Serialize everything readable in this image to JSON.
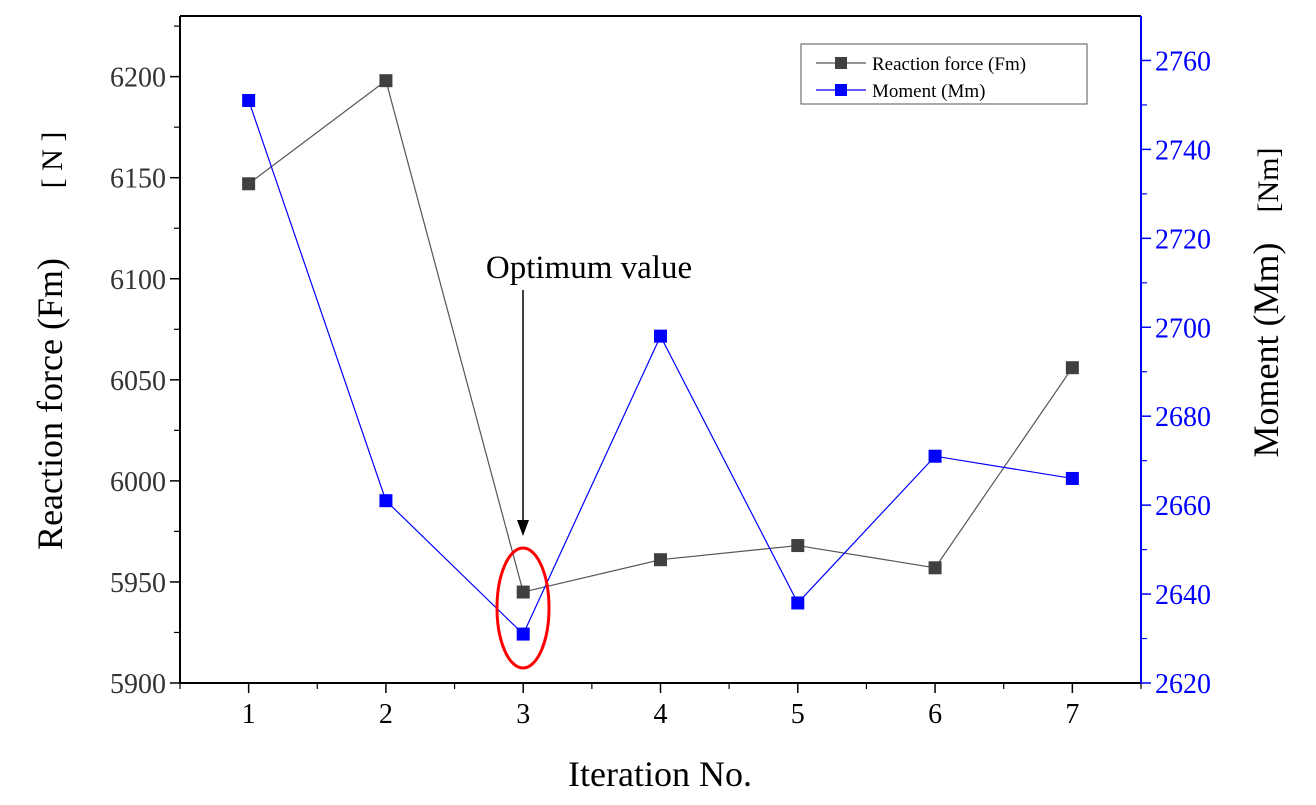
{
  "chart_data": {
    "type": "line",
    "x": [
      1,
      2,
      3,
      4,
      5,
      6,
      7
    ],
    "xlabel": "Iteration No.",
    "xlim": [
      0.5,
      7.5
    ],
    "x_ticks": [
      "1",
      "2",
      "3",
      "4",
      "5",
      "6",
      "7"
    ],
    "series": [
      {
        "name": "Reaction force (Fm)",
        "axis": "left",
        "color": "#555555",
        "marker_color": "#404040",
        "values": [
          6147,
          6198,
          5945,
          5961,
          5968,
          5957,
          6056
        ]
      },
      {
        "name": "Moment (Mm)",
        "axis": "right",
        "color": "#0000ff",
        "marker_color": "#0000ff",
        "values": [
          2751,
          2661,
          2631,
          2698,
          2638,
          2671,
          2666
        ]
      }
    ],
    "y_left": {
      "label": "Reaction force (Fm)",
      "unit": "[ N ]",
      "lim": [
        5900,
        6230
      ],
      "ticks": [
        "5900",
        "5950",
        "6000",
        "6050",
        "6100",
        "6150",
        "6200"
      ]
    },
    "y_right": {
      "label": "Moment (Mm)",
      "unit": "[Nm]",
      "lim": [
        2620,
        2770
      ],
      "ticks": [
        "2620",
        "2640",
        "2660",
        "2680",
        "2700",
        "2720",
        "2740",
        "2760"
      ],
      "color": "#0000ff"
    },
    "legend": {
      "position": "top-right",
      "entries": [
        "Reaction force (Fm)",
        "Moment (Mm)"
      ]
    },
    "annotation": {
      "text": "Optimum value",
      "target_x": 3,
      "highlight_color": "#ff0000"
    }
  }
}
